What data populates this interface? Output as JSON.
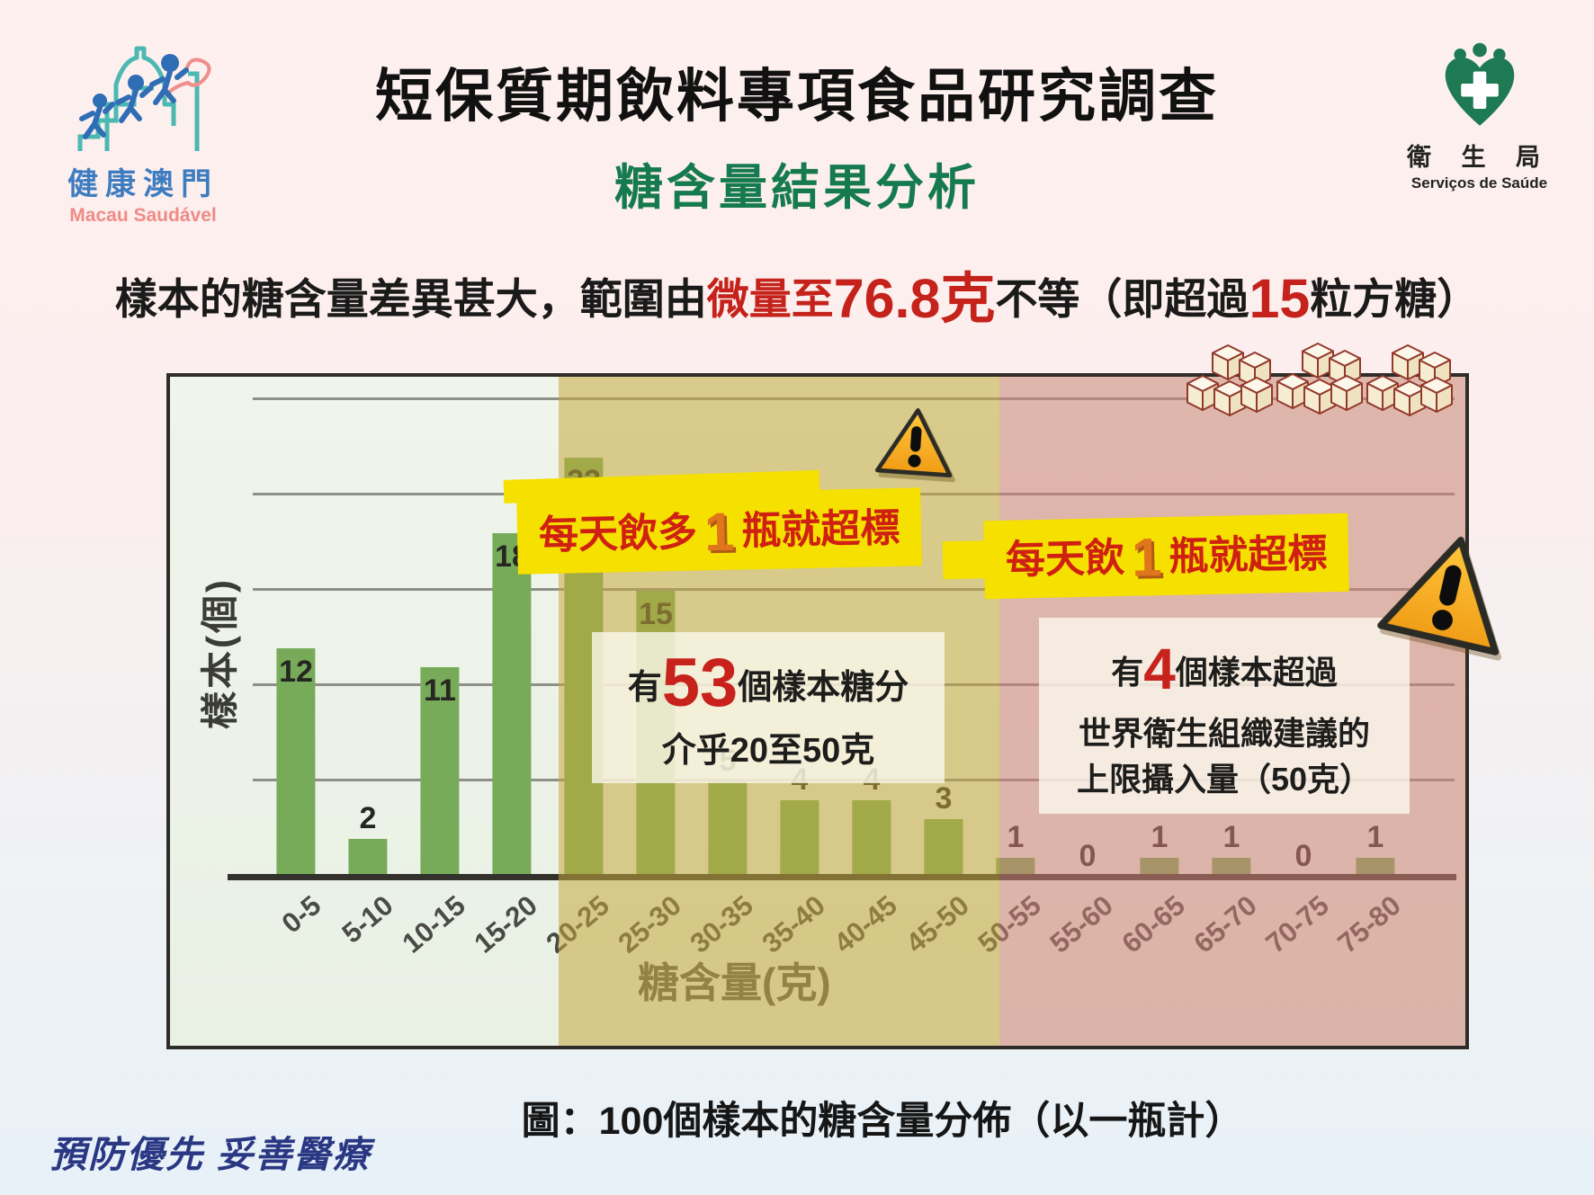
{
  "header": {
    "logo_left": {
      "name_zh": "健康澳門",
      "name_pt": "Macau Saudável"
    },
    "title": "短保質期飲料專項食品研究調查",
    "subtitle": "糖含量結果分析",
    "logo_right": {
      "name_zh": "衛 生 局",
      "name_pt": "Serviços de Saúde"
    }
  },
  "intro": {
    "part1": "樣本的糖含量差異甚大，範圍由",
    "red_small": "微量至",
    "red_big1": "76.8克",
    "part2": "不等（即超過",
    "red_big2": "15",
    "part3": "粒方糖）"
  },
  "chart_data": {
    "type": "bar",
    "title": "圖：100個樣本的糖含量分佈（以一瓶計）",
    "xlabel": "糖含量(克)",
    "ylabel": "樣本(個)",
    "categories": [
      "0-5",
      "5-10",
      "10-15",
      "15-20",
      "20-25",
      "25-30",
      "30-35",
      "35-40",
      "40-45",
      "45-50",
      "50-55",
      "55-60",
      "60-65",
      "65-70",
      "70-75",
      "75-80"
    ],
    "values": [
      12,
      2,
      11,
      18,
      22,
      15,
      5,
      4,
      4,
      3,
      1,
      0,
      1,
      1,
      0,
      1
    ],
    "total_samples": 100,
    "ylim": [
      0,
      26
    ],
    "gridlines": [
      5,
      10,
      15,
      20,
      25
    ],
    "grid_on": true,
    "bar_color": "#77ab5a",
    "regions": [
      {
        "range": "0-20克",
        "base_color": "#eef4e9"
      },
      {
        "range": "20-50克",
        "tint_color": "#d6c88f",
        "overlay": "rgba(197,168,60,0.55)"
      },
      {
        "range": "50-80克",
        "tint_color": "#ddb5ab",
        "overlay": "rgba(209,130,118,0.55)"
      }
    ]
  },
  "annotations": {
    "banner_mid": {
      "pre": "每天飲多",
      "num": "1",
      "post": "瓶就超標"
    },
    "banner_right": {
      "pre": "每天飲",
      "num": "1",
      "post": "瓶就超標"
    },
    "box_mid": {
      "pre": "有",
      "num": "53",
      "post": "個樣本糖分",
      "line2": "介乎20至50克"
    },
    "box_right": {
      "pre": "有",
      "num": "4",
      "post": "個樣本超過",
      "line2": "世界衛生組織建議的",
      "line3": "上限攝入量（50克）"
    },
    "warning_icon": "warning-triangle",
    "sugar_cube_icon": "sugar-cubes"
  },
  "caption": "圖：100個樣本的糖含量分佈（以一瓶計）",
  "footer": {
    "slogan": "預防優先  妥善醫療"
  },
  "colors": {
    "title_green": "#157a4e",
    "accent_red": "#c4221a",
    "banner_yellow": "#f5e000",
    "banner_text_red": "#cf2012",
    "one_orange": "#e0761c",
    "slogan_navy": "#2a3884",
    "bar_green": "#77ab5a"
  }
}
